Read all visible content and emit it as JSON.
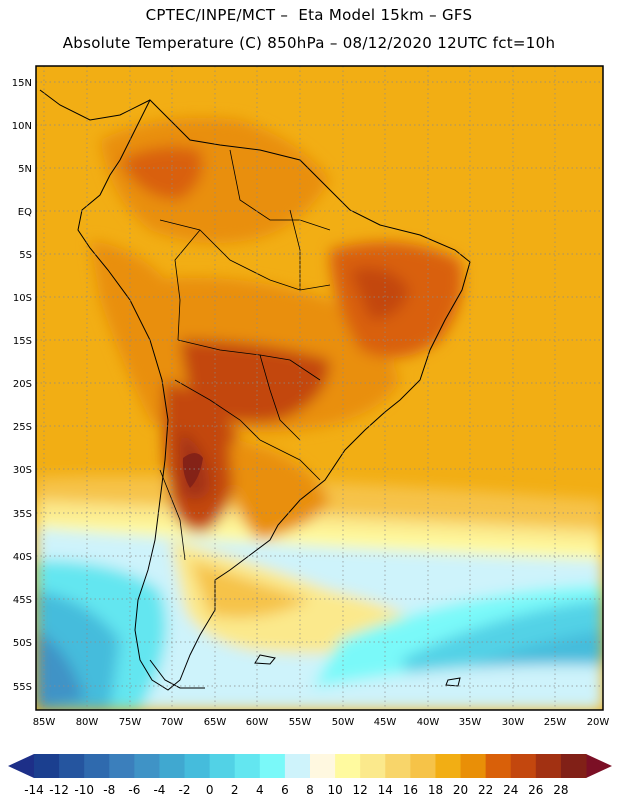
{
  "header": {
    "line1": "CPTEC/INPE/MCT –  Eta Model 15km – GFS",
    "line2": "Absolute Temperature (C) 850hPa – 08/12/2020 12UTC fct=10h"
  },
  "axes": {
    "lat_labels": [
      "15N",
      "10N",
      "5N",
      "EQ",
      "5S",
      "10S",
      "15S",
      "20S",
      "25S",
      "30S",
      "35S",
      "40S",
      "45S",
      "50S",
      "55S"
    ],
    "lon_labels": [
      "85W",
      "80W",
      "75W",
      "70W",
      "65W",
      "60W",
      "55W",
      "50W",
      "45W",
      "40W",
      "35W",
      "30W",
      "25W",
      "20W"
    ]
  },
  "colorbar": {
    "labels": [
      "-14",
      "-12",
      "-10",
      "-8",
      "-6",
      "-4",
      "-2",
      "0",
      "2",
      "4",
      "6",
      "8",
      "10",
      "12",
      "14",
      "16",
      "18",
      "20",
      "22",
      "24",
      "26",
      "28"
    ],
    "colors": [
      "#1b3f8f",
      "#25559f",
      "#2f6aae",
      "#3b7fbc",
      "#3f93c6",
      "#40a8d0",
      "#45bcdc",
      "#52d2e6",
      "#63e6f0",
      "#7af9f9",
      "#cef3fb",
      "#fff8e0",
      "#fffa9f",
      "#fbe98c",
      "#f8d56a",
      "#f6c348",
      "#f2ae14",
      "#e98f07",
      "#d96009",
      "#c3470e",
      "#a23112",
      "#812017"
    ],
    "under_color": "#1d2f88",
    "over_color": "#7b0f25"
  }
}
